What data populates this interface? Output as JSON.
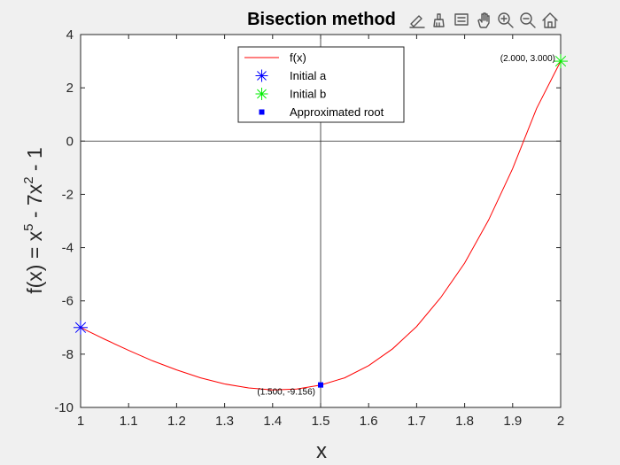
{
  "figure": {
    "background": "#f0f0f0"
  },
  "toolbar": {
    "icons": [
      "edit-icon",
      "brush-icon",
      "data-tips-icon",
      "pan-hand-icon",
      "zoom-in-icon",
      "zoom-out-icon",
      "home-icon"
    ]
  },
  "chart_data": {
    "type": "line",
    "title": "Bisection method",
    "xlabel": "x",
    "ylabel": "f(x) = x^5 - 7x^2 - 1",
    "ylabel_parts": {
      "base": "f(x) = x",
      "exp1": "5",
      "mid": " - 7x",
      "exp2": "2",
      "tail": " - 1"
    },
    "xlim": [
      1,
      2
    ],
    "ylim": [
      -10,
      4
    ],
    "xticks": [
      1,
      1.1,
      1.2,
      1.3,
      1.4,
      1.5,
      1.6,
      1.7,
      1.8,
      1.9,
      2
    ],
    "xtick_labels": [
      "1",
      "1.1",
      "1.2",
      "1.3",
      "1.4",
      "1.5",
      "1.6",
      "1.7",
      "1.8",
      "1.9",
      "2"
    ],
    "yticks": [
      -10,
      -8,
      -6,
      -4,
      -2,
      0,
      2,
      4
    ],
    "ytick_labels": [
      "-10",
      "-8",
      "-6",
      "-4",
      "-2",
      "0",
      "2",
      "4"
    ],
    "grid": false,
    "legend_position": "top-center",
    "reference_lines": {
      "y": 0,
      "x": 1.5
    },
    "series": [
      {
        "name": "f(x)",
        "kind": "line",
        "color": "#ff0000",
        "x": [
          1.0,
          1.05,
          1.1,
          1.15,
          1.2,
          1.25,
          1.3,
          1.35,
          1.4,
          1.45,
          1.5,
          1.55,
          1.6,
          1.65,
          1.7,
          1.75,
          1.8,
          1.85,
          1.9,
          1.95,
          2.0
        ],
        "y": [
          -7.0,
          -7.44,
          -7.86,
          -8.25,
          -8.59,
          -8.89,
          -9.12,
          -9.27,
          -9.34,
          -9.31,
          -9.16,
          -8.89,
          -8.43,
          -7.8,
          -6.96,
          -5.88,
          -4.58,
          -2.96,
          -1.03,
          1.23,
          3.0
        ]
      },
      {
        "name": "Initial a",
        "kind": "marker",
        "marker": "asterisk",
        "color": "#0000ff",
        "x": [
          1
        ],
        "y": [
          -7
        ]
      },
      {
        "name": "Initial b",
        "kind": "marker",
        "marker": "asterisk",
        "color": "#00ee00",
        "x": [
          2
        ],
        "y": [
          3
        ]
      },
      {
        "name": "Approximated root",
        "kind": "marker",
        "marker": "square",
        "color": "#0000ff",
        "x": [
          1.5
        ],
        "y": [
          -9.156
        ]
      }
    ],
    "annotations": [
      {
        "text": "(2.000, 3.000)",
        "x": 2,
        "y": 3,
        "anchor": "end"
      },
      {
        "text": "(1.500, -9.156)",
        "x": 1.5,
        "y": -9.156,
        "anchor": "end"
      }
    ]
  }
}
